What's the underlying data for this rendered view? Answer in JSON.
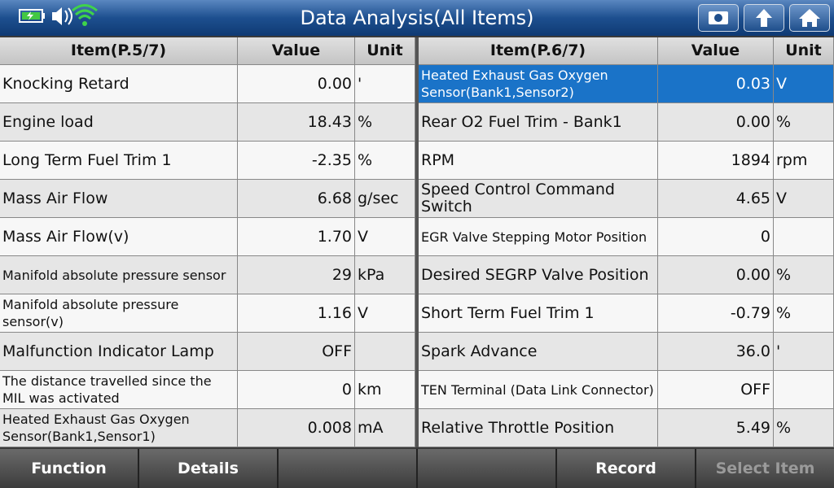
{
  "header": {
    "title": "Data Analysis(All Items)"
  },
  "left_table": {
    "columns": [
      "Item(P.5/7)",
      "Value",
      "Unit"
    ],
    "selected": null,
    "rows": [
      [
        "Knocking Retard",
        "0.00",
        "'"
      ],
      [
        "Engine load",
        "18.43",
        "%"
      ],
      [
        "Long Term Fuel Trim 1",
        "-2.35",
        "%"
      ],
      [
        "Mass Air Flow",
        "6.68",
        "g/sec"
      ],
      [
        "Mass Air Flow(v)",
        "1.70",
        "V"
      ],
      [
        "Manifold absolute pressure sensor",
        "29",
        "kPa"
      ],
      [
        "Manifold absolute pressure sensor(v)",
        "1.16",
        "V"
      ],
      [
        "Malfunction Indicator Lamp",
        "OFF",
        null
      ],
      [
        "The distance travelled since the MIL was activated",
        "0",
        "km"
      ],
      [
        "Heated Exhaust Gas Oxygen Sensor(Bank1,Sensor1)",
        "0.008",
        "mA"
      ]
    ]
  },
  "right_table": {
    "columns": [
      "Item(P.6/7)",
      "Value",
      "Unit"
    ],
    "selected": 0,
    "rows": [
      [
        "Heated Exhaust Gas Oxygen Sensor(Bank1,Sensor2)",
        "0.03",
        "V"
      ],
      [
        "Rear O2 Fuel Trim - Bank1",
        "0.00",
        "%"
      ],
      [
        "RPM",
        "1894",
        "rpm"
      ],
      [
        "Speed Control Command Switch",
        "4.65",
        "V"
      ],
      [
        "EGR Valve Stepping Motor Position",
        "0",
        null
      ],
      [
        "Desired SEGRP Valve Position",
        "0.00",
        "%"
      ],
      [
        "Short Term Fuel Trim 1",
        "-0.79",
        "%"
      ],
      [
        "Spark Advance",
        "36.0",
        "'"
      ],
      [
        "TEN Terminal (Data Link Connector)",
        "OFF",
        null
      ],
      [
        "Relative Throttle Position",
        "5.49",
        "%"
      ]
    ]
  },
  "footer": {
    "buttons": [
      {
        "label": "Function",
        "enabled": true,
        "slot": 0
      },
      {
        "label": "Details",
        "enabled": true,
        "slot": 1
      },
      {
        "label": "Record",
        "enabled": true,
        "slot": 4
      },
      {
        "label": "Select Item",
        "enabled": false,
        "slot": 5
      }
    ]
  }
}
